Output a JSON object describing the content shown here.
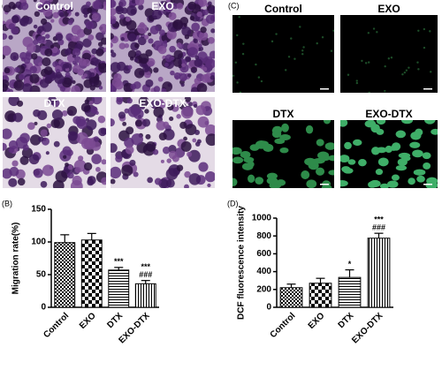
{
  "image_panels": [
    {
      "label": "(A)",
      "captions": [
        "Control",
        "EXO",
        "DTX",
        "EXO-DTX"
      ]
    },
    {
      "label": "(C)",
      "captions": [
        "Control",
        "EXO",
        "DTX",
        "EXO-DTX"
      ]
    }
  ],
  "chart_data": [
    {
      "type": "bar",
      "panel": "(B)",
      "ylabel": "Migration rate(%)",
      "categories": [
        "Control",
        "EXO",
        "DTX",
        "EXO-DTX"
      ],
      "values": [
        99,
        103,
        57,
        36
      ],
      "errors": [
        12,
        10,
        4,
        5
      ],
      "annotations": [
        [],
        [],
        [
          "***"
        ],
        [
          "***",
          "###"
        ]
      ],
      "ylim": [
        0,
        150
      ],
      "yticks": [
        0,
        50,
        100,
        150
      ],
      "color": "#000000"
    },
    {
      "type": "bar",
      "panel": "(D)",
      "ylabel": "DCF fluorescence intensity",
      "categories": [
        "Control",
        "EXO",
        "DTX",
        "EXO-DTX"
      ],
      "values": [
        220,
        270,
        335,
        775
      ],
      "errors": [
        40,
        55,
        85,
        55
      ],
      "annotations": [
        [],
        [],
        [
          "*"
        ],
        [
          "***",
          "###"
        ]
      ],
      "ylim": [
        0,
        1000
      ],
      "yticks": [
        0,
        200,
        400,
        600,
        800,
        1000
      ],
      "color": "#000000"
    }
  ]
}
